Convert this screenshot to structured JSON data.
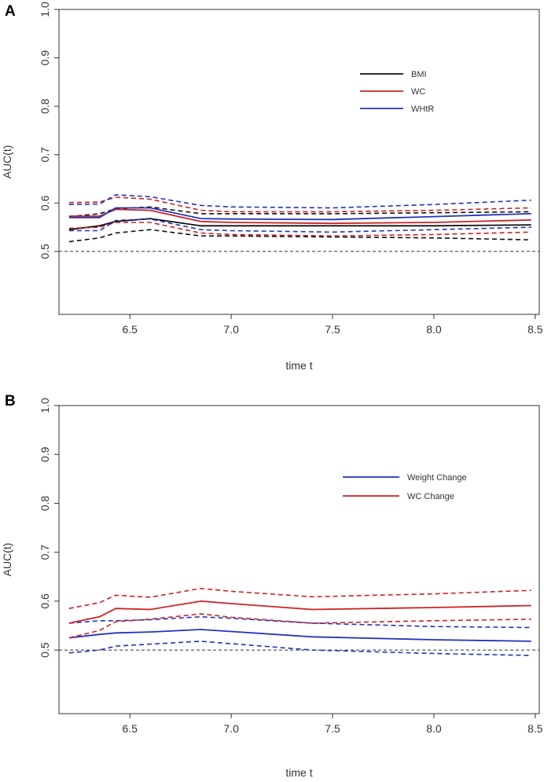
{
  "panels": {
    "a": {
      "letter": "A"
    },
    "b": {
      "letter": "B"
    }
  },
  "chart_data": [
    {
      "type": "line",
      "xlabel": "time t",
      "ylabel": "AUC(t)",
      "xlim": [
        6.15,
        8.52
      ],
      "ylim": [
        0.37,
        1.0
      ],
      "xticks": [
        "6.5",
        "7.0",
        "7.5",
        "8.0",
        "8.5"
      ],
      "yticks": [
        "0.5",
        "0.6",
        "0.7",
        "0.8",
        "0.9",
        "1.0"
      ],
      "reference_line": 0.5,
      "legend": {
        "placement": "top-right",
        "entries": [
          "BMI",
          "WC",
          "WHtR"
        ]
      },
      "series": [
        {
          "name": "BMI",
          "color": "#111111",
          "style": "solid",
          "x": [
            6.2,
            6.35,
            6.43,
            6.6,
            6.85,
            7.0,
            7.5,
            8.0,
            8.48
          ],
          "y": [
            0.545,
            0.553,
            0.562,
            0.568,
            0.553,
            0.553,
            0.553,
            0.553,
            0.555
          ]
        },
        {
          "name": "BMI lower",
          "color": "#111111",
          "style": "dashed",
          "x": [
            6.2,
            6.35,
            6.43,
            6.6,
            6.85,
            7.0,
            7.5,
            8.0,
            8.48
          ],
          "y": [
            0.52,
            0.528,
            0.538,
            0.545,
            0.532,
            0.532,
            0.53,
            0.528,
            0.524
          ]
        },
        {
          "name": "BMI upper",
          "color": "#111111",
          "style": "dashed",
          "x": [
            6.2,
            6.35,
            6.43,
            6.6,
            6.85,
            7.0,
            7.5,
            8.0,
            8.48
          ],
          "y": [
            0.572,
            0.578,
            0.588,
            0.592,
            0.578,
            0.578,
            0.578,
            0.58,
            0.582
          ]
        },
        {
          "name": "WC",
          "color": "#cc2222",
          "style": "solid",
          "x": [
            6.2,
            6.35,
            6.43,
            6.6,
            6.85,
            7.0,
            7.5,
            8.0,
            8.48
          ],
          "y": [
            0.573,
            0.573,
            0.587,
            0.585,
            0.562,
            0.56,
            0.558,
            0.56,
            0.565
          ]
        },
        {
          "name": "WC lower",
          "color": "#cc2222",
          "style": "dashed",
          "x": [
            6.2,
            6.35,
            6.43,
            6.6,
            6.85,
            7.0,
            7.5,
            8.0,
            8.48
          ],
          "y": [
            0.548,
            0.55,
            0.56,
            0.56,
            0.538,
            0.535,
            0.532,
            0.535,
            0.54
          ]
        },
        {
          "name": "WC upper",
          "color": "#cc2222",
          "style": "dashed",
          "x": [
            6.2,
            6.35,
            6.43,
            6.6,
            6.85,
            7.0,
            7.5,
            8.0,
            8.48
          ],
          "y": [
            0.601,
            0.602,
            0.612,
            0.608,
            0.585,
            0.582,
            0.582,
            0.585,
            0.59
          ]
        },
        {
          "name": "WHtR",
          "color": "#2233bb",
          "style": "solid",
          "x": [
            6.2,
            6.35,
            6.43,
            6.6,
            6.85,
            7.0,
            7.5,
            8.0,
            8.48
          ],
          "y": [
            0.57,
            0.57,
            0.59,
            0.59,
            0.568,
            0.567,
            0.566,
            0.572,
            0.578
          ]
        },
        {
          "name": "WHtR lower",
          "color": "#2233bb",
          "style": "dashed",
          "x": [
            6.2,
            6.35,
            6.43,
            6.6,
            6.85,
            7.0,
            7.5,
            8.0,
            8.48
          ],
          "y": [
            0.543,
            0.543,
            0.564,
            0.567,
            0.545,
            0.543,
            0.54,
            0.545,
            0.55
          ]
        },
        {
          "name": "WHtR upper",
          "color": "#2233bb",
          "style": "dashed",
          "x": [
            6.2,
            6.35,
            6.43,
            6.6,
            6.85,
            7.0,
            7.5,
            8.0,
            8.48
          ],
          "y": [
            0.597,
            0.598,
            0.617,
            0.613,
            0.595,
            0.592,
            0.59,
            0.597,
            0.606
          ]
        }
      ]
    },
    {
      "type": "line",
      "xlabel": "time t",
      "ylabel": "AUC(t)",
      "xlim": [
        6.15,
        8.52
      ],
      "ylim": [
        0.37,
        1.0
      ],
      "xticks": [
        "6.5",
        "7.0",
        "7.5",
        "8.0",
        "8.5"
      ],
      "yticks": [
        "0.5",
        "0.6",
        "0.7",
        "0.8",
        "0.9",
        "1.0"
      ],
      "reference_line": 0.5,
      "legend": {
        "placement": "top-right",
        "entries": [
          "Weight Change",
          "WC Change"
        ]
      },
      "series": [
        {
          "name": "Weight Change",
          "color": "#2233bb",
          "style": "solid",
          "x": [
            6.2,
            6.35,
            6.43,
            6.6,
            6.85,
            7.0,
            7.4,
            8.0,
            8.48
          ],
          "y": [
            0.525,
            0.532,
            0.535,
            0.537,
            0.542,
            0.538,
            0.527,
            0.521,
            0.518
          ]
        },
        {
          "name": "Weight Change lower",
          "color": "#2233bb",
          "style": "dashed",
          "x": [
            6.2,
            6.35,
            6.43,
            6.6,
            6.85,
            7.0,
            7.4,
            8.0,
            8.48
          ],
          "y": [
            0.494,
            0.5,
            0.508,
            0.512,
            0.518,
            0.513,
            0.5,
            0.493,
            0.489
          ]
        },
        {
          "name": "Weight Change upper",
          "color": "#2233bb",
          "style": "dashed",
          "x": [
            6.2,
            6.35,
            6.43,
            6.6,
            6.85,
            7.0,
            7.4,
            8.0,
            8.48
          ],
          "y": [
            0.555,
            0.56,
            0.56,
            0.562,
            0.568,
            0.565,
            0.555,
            0.548,
            0.546
          ]
        },
        {
          "name": "WC Change",
          "color": "#cc2222",
          "style": "solid",
          "x": [
            6.2,
            6.35,
            6.43,
            6.6,
            6.85,
            7.0,
            7.4,
            8.0,
            8.48
          ],
          "y": [
            0.555,
            0.568,
            0.585,
            0.583,
            0.6,
            0.595,
            0.583,
            0.587,
            0.591
          ]
        },
        {
          "name": "WC Change lower",
          "color": "#cc2222",
          "style": "dashed",
          "x": [
            6.2,
            6.35,
            6.43,
            6.6,
            6.85,
            7.0,
            7.4,
            8.0,
            8.48
          ],
          "y": [
            0.525,
            0.54,
            0.558,
            0.563,
            0.574,
            0.567,
            0.555,
            0.56,
            0.563
          ]
        },
        {
          "name": "WC Change upper",
          "color": "#cc2222",
          "style": "dashed",
          "x": [
            6.2,
            6.35,
            6.43,
            6.6,
            6.85,
            7.0,
            7.4,
            8.0,
            8.48
          ],
          "y": [
            0.585,
            0.597,
            0.612,
            0.608,
            0.626,
            0.62,
            0.609,
            0.615,
            0.622
          ]
        }
      ]
    }
  ]
}
